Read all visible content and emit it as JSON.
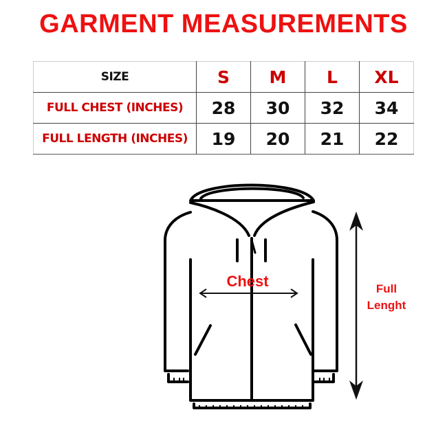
{
  "title": "GARMENT MEASUREMENTS",
  "table": {
    "header": {
      "label": "SIZE",
      "sizes": [
        "S",
        "M",
        "L",
        "XL"
      ]
    },
    "rows": [
      {
        "label": "FULL CHEST (INCHES)",
        "values": [
          "28",
          "30",
          "32",
          "34"
        ]
      },
      {
        "label": "FULL LENGTH (INCHES)",
        "values": [
          "19",
          "20",
          "21",
          "22"
        ]
      }
    ]
  },
  "diagram": {
    "chest_label": "Chest",
    "length_label_line1": "Full",
    "length_label_line2": "Lenght"
  },
  "colors": {
    "accent": "#ee1111",
    "label_red": "#cc0000"
  }
}
